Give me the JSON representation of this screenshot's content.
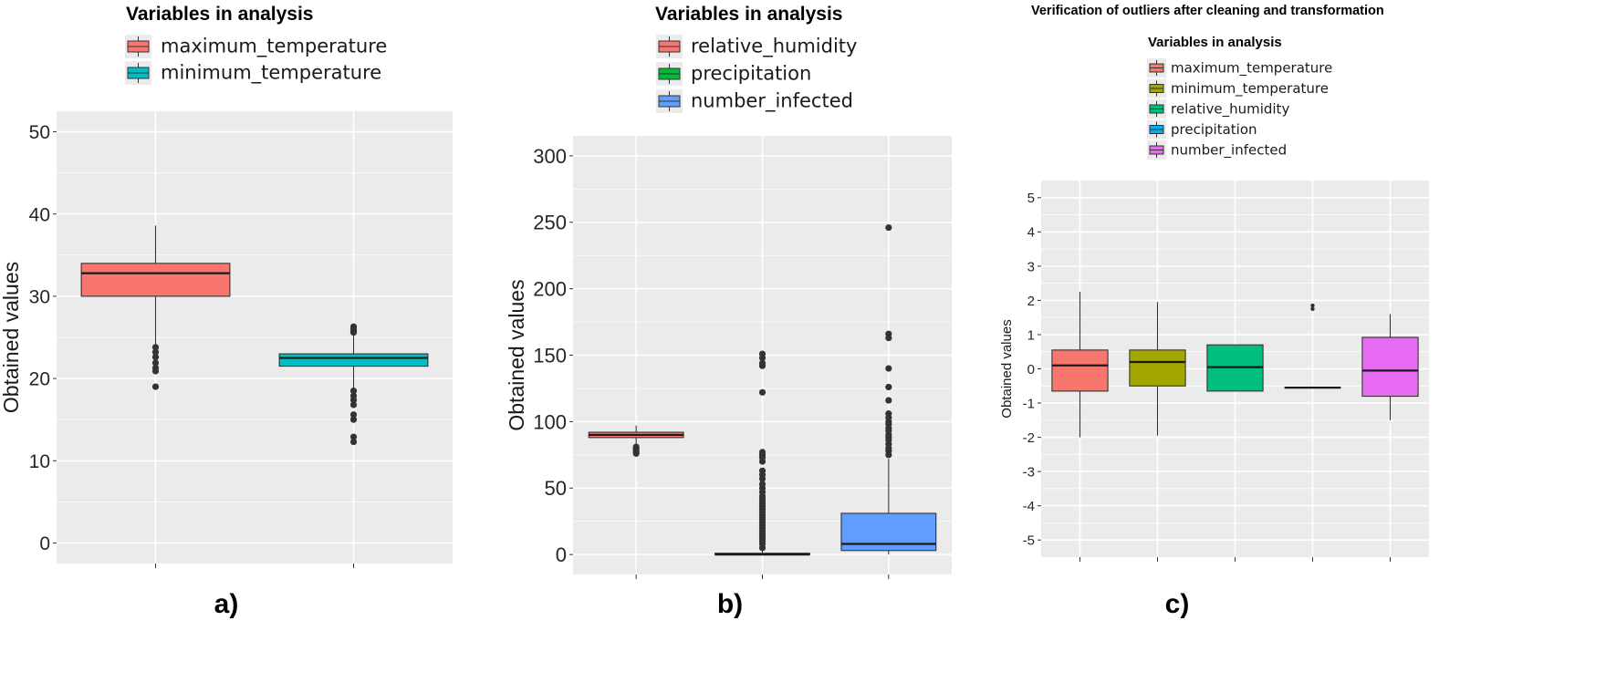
{
  "chart_data": [
    {
      "type": "boxplot",
      "panel_label": "a)",
      "title": "",
      "legend_title": "Variables in analysis",
      "legend_position": "top",
      "ylabel": "Obtained values",
      "xlabel": "",
      "ylim": [
        -2.5,
        52.5
      ],
      "yticks": [
        0,
        10,
        20,
        30,
        40,
        50
      ],
      "grid": true,
      "series": [
        {
          "name": "maximum_temperature",
          "color": "#F8766D",
          "whisker_low": 24.0,
          "q1": 30.0,
          "median": 32.8,
          "q3": 34.0,
          "whisker_high": 38.6,
          "outliers": [
            23.8,
            23.2,
            22.6,
            21.9,
            21.3,
            20.9,
            19.0
          ]
        },
        {
          "name": "minimum_temperature",
          "color": "#00BFC4",
          "whisker_low": 18.2,
          "q1": 21.5,
          "median": 22.5,
          "q3": 23.0,
          "whisker_high": 25.3,
          "outliers": [
            26.3,
            26.0,
            25.8,
            25.6,
            18.5,
            17.9,
            17.4,
            16.8,
            15.6,
            15.0,
            12.9,
            12.3
          ]
        }
      ]
    },
    {
      "type": "boxplot",
      "panel_label": "b)",
      "title": "",
      "legend_title": "Variables in analysis",
      "legend_position": "top",
      "ylabel": "Obtained values",
      "xlabel": "",
      "ylim": [
        -15,
        315
      ],
      "yticks": [
        0,
        50,
        100,
        150,
        200,
        250,
        300
      ],
      "grid": true,
      "series": [
        {
          "name": "relative_humidity",
          "color": "#F8766D",
          "whisker_low": 82,
          "q1": 88,
          "median": 90,
          "q3": 92,
          "whisker_high": 97,
          "outliers": [
            81,
            80,
            79,
            78,
            77,
            76
          ]
        },
        {
          "name": "precipitation",
          "color": "#00BA38",
          "whisker_low": 0,
          "q1": 0,
          "median": 0,
          "q3": 1,
          "whisker_high": 3,
          "outliers": [
            5,
            8,
            10,
            12,
            14,
            16,
            18,
            20,
            22,
            24,
            26,
            28,
            30,
            32,
            34,
            36,
            38,
            40,
            42,
            44,
            47,
            50,
            53,
            57,
            60,
            63,
            70,
            73,
            75,
            77,
            122,
            142,
            144,
            148,
            151
          ]
        },
        {
          "name": "number_infected",
          "color": "#619CFF",
          "whisker_low": 0,
          "q1": 3,
          "median": 8,
          "q3": 31,
          "whisker_high": 72,
          "outliers": [
            75,
            78,
            80,
            83,
            86,
            88,
            90,
            93,
            95,
            98,
            100,
            103,
            106,
            116,
            126,
            140,
            163,
            166,
            246
          ]
        }
      ]
    },
    {
      "type": "boxplot",
      "panel_label": "c)",
      "title": "Verification of outliers after cleaning and transformation",
      "legend_title": "Variables in analysis",
      "legend_position": "top",
      "ylabel": "Obtained values",
      "xlabel": "",
      "ylim": [
        -5.5,
        5.5
      ],
      "yticks": [
        -5,
        -4,
        -3,
        -2,
        -1,
        0,
        1,
        2,
        3,
        4,
        5
      ],
      "grid": true,
      "series": [
        {
          "name": "maximum_temperature",
          "color": "#F8766D",
          "whisker_low": -2.0,
          "q1": -0.65,
          "median": 0.1,
          "q3": 0.55,
          "whisker_high": 2.25,
          "outliers": []
        },
        {
          "name": "minimum_temperature",
          "color": "#A3A500",
          "whisker_low": -1.95,
          "q1": -0.5,
          "median": 0.2,
          "q3": 0.55,
          "whisker_high": 1.95,
          "outliers": []
        },
        {
          "name": "relative_humidity",
          "color": "#00BF7D",
          "whisker_low": -0.65,
          "q1": -0.65,
          "median": 0.05,
          "q3": 0.7,
          "whisker_high": 0.7,
          "outliers": []
        },
        {
          "name": "precipitation",
          "color": "#00B0F6",
          "whisker_low": -0.55,
          "q1": -0.55,
          "median": -0.55,
          "q3": -0.55,
          "whisker_high": -0.55,
          "outliers": [
            1.75,
            1.85
          ]
        },
        {
          "name": "number_infected",
          "color": "#E76BF3",
          "whisker_low": -1.5,
          "q1": -0.8,
          "median": -0.05,
          "q3": 0.92,
          "whisker_high": 1.6,
          "outliers": []
        }
      ]
    }
  ]
}
